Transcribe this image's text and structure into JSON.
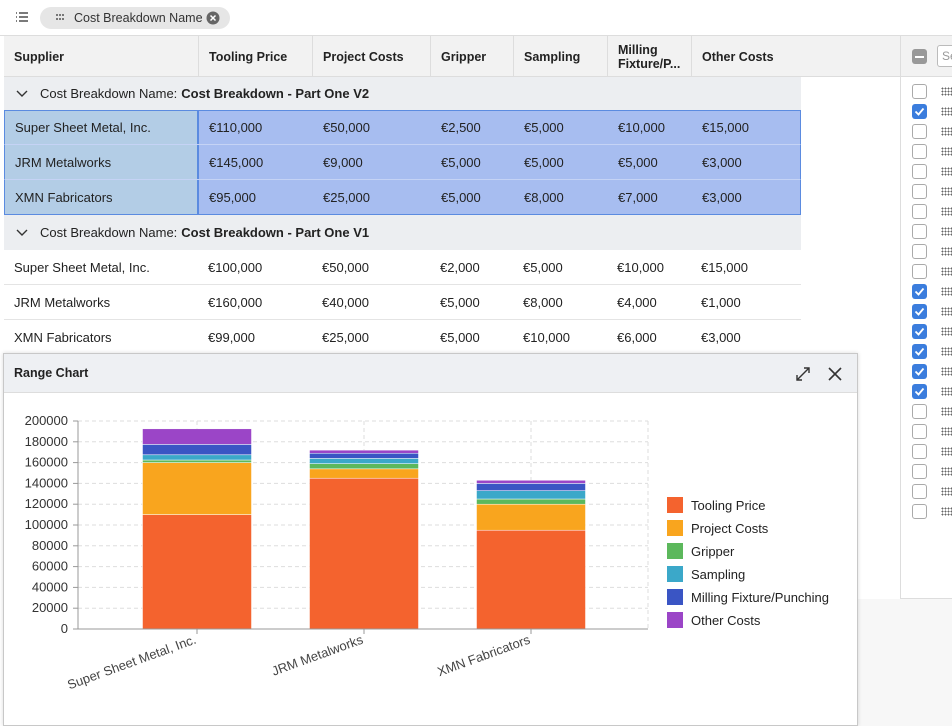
{
  "toolbar": {
    "chip": "Cost Breakdown Name"
  },
  "grid": {
    "columns": [
      "Supplier",
      "Tooling Price",
      "Project Costs",
      "Gripper",
      "Sampling",
      "Milling Fixture/P...",
      "Other Costs"
    ],
    "groups": [
      {
        "label": "Cost Breakdown Name:",
        "name": "Cost Breakdown - Part One V2",
        "selected": true,
        "rows": [
          [
            "Super Sheet Metal, Inc.",
            "€110,000",
            "€50,000",
            "€2,500",
            "€5,000",
            "€10,000",
            "€15,000"
          ],
          [
            "JRM Metalworks",
            "€145,000",
            "€9,000",
            "€5,000",
            "€5,000",
            "€5,000",
            "€3,000"
          ],
          [
            "XMN Fabricators",
            "€95,000",
            "€25,000",
            "€5,000",
            "€8,000",
            "€7,000",
            "€3,000"
          ]
        ]
      },
      {
        "label": "Cost Breakdown Name:",
        "name": "Cost Breakdown - Part One V1",
        "selected": false,
        "rows": [
          [
            "Super Sheet Metal, Inc.",
            "€100,000",
            "€50,000",
            "€2,000",
            "€5,000",
            "€10,000",
            "€15,000"
          ],
          [
            "JRM Metalworks",
            "€160,000",
            "€40,000",
            "€5,000",
            "€8,000",
            "€4,000",
            "€1,000"
          ],
          [
            "XMN Fabricators",
            "€99,000",
            "€25,000",
            "€5,000",
            "€10,000",
            "€6,000",
            "€3,000"
          ]
        ]
      }
    ]
  },
  "chart_panel": {
    "title": "Range Chart"
  },
  "chart_data": {
    "type": "bar",
    "stacked": true,
    "categories": [
      "Super Sheet Metal, Inc.",
      "JRM Metalworks",
      "XMN Fabricators"
    ],
    "series": [
      {
        "name": "Tooling Price",
        "color": "#f4632e",
        "values": [
          110000,
          145000,
          95000
        ]
      },
      {
        "name": "Project Costs",
        "color": "#f9a51e",
        "values": [
          50000,
          9000,
          25000
        ]
      },
      {
        "name": "Gripper",
        "color": "#5cb85c",
        "values": [
          2500,
          5000,
          5000
        ]
      },
      {
        "name": "Sampling",
        "color": "#3ba8c9",
        "values": [
          5000,
          5000,
          8000
        ]
      },
      {
        "name": "Milling Fixture/Punching",
        "color": "#3a55c4",
        "values": [
          10000,
          5000,
          7000
        ]
      },
      {
        "name": "Other Costs",
        "color": "#9b45c7",
        "values": [
          15000,
          3000,
          3000
        ]
      }
    ],
    "ylim": [
      0,
      200000
    ],
    "yticks": [
      0,
      20000,
      40000,
      60000,
      80000,
      100000,
      120000,
      140000,
      160000,
      180000,
      200000
    ],
    "grid": true,
    "legend": "right"
  },
  "side_panel": {
    "search_placeholder": "Se",
    "checked": [
      false,
      true,
      false,
      false,
      false,
      false,
      false,
      false,
      false,
      false,
      true,
      true,
      true,
      true,
      true,
      true,
      false,
      false,
      false,
      false,
      false,
      false
    ]
  }
}
